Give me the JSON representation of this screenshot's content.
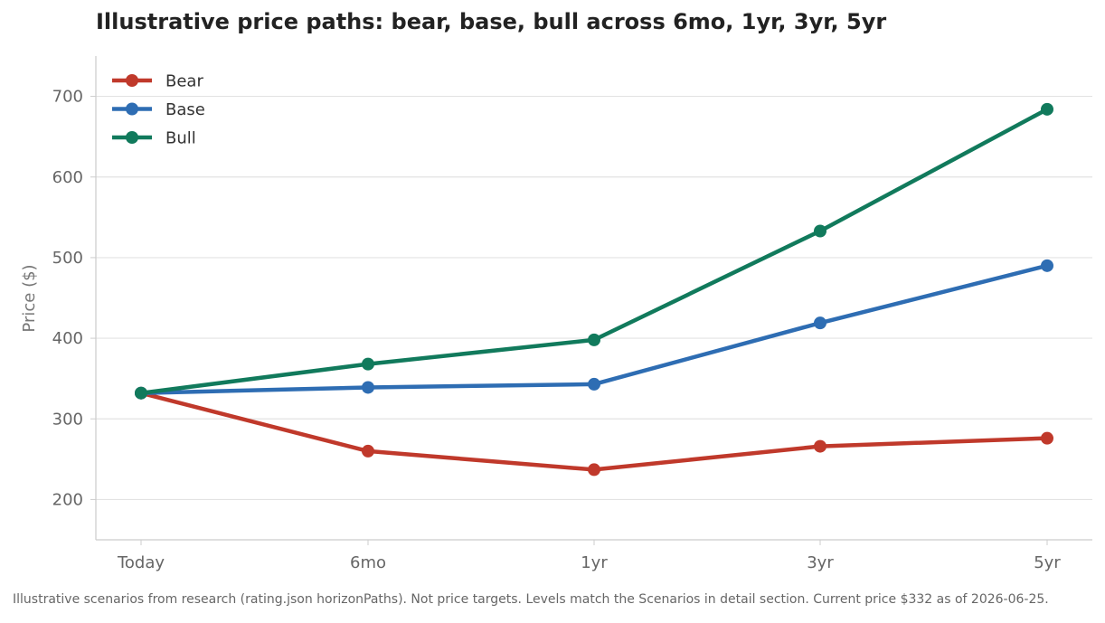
{
  "chart_data": {
    "type": "line",
    "title": "Illustrative price paths: bear, base, bull across 6mo, 1yr, 3yr, 5yr",
    "xlabel": "",
    "ylabel": "Price ($)",
    "categories": [
      "Today",
      "6mo",
      "1yr",
      "3yr",
      "5yr"
    ],
    "ylim": [
      150,
      750
    ],
    "yticks": [
      200,
      300,
      400,
      500,
      600,
      700
    ],
    "grid": "horizontal",
    "legend_position": "top-left",
    "series": [
      {
        "name": "Bear",
        "color": "#c0392b",
        "values": [
          332,
          260,
          237,
          266,
          276
        ]
      },
      {
        "name": "Base",
        "color": "#2e6db3",
        "values": [
          332,
          339,
          343,
          419,
          490
        ]
      },
      {
        "name": "Bull",
        "color": "#117a5c",
        "values": [
          332,
          368,
          398,
          533,
          684
        ]
      }
    ]
  },
  "footnote": "Illustrative scenarios from research (rating.json horizonPaths). Not price targets. Levels match the Scenarios in detail section. Current price $332 as of 2026-06-25."
}
